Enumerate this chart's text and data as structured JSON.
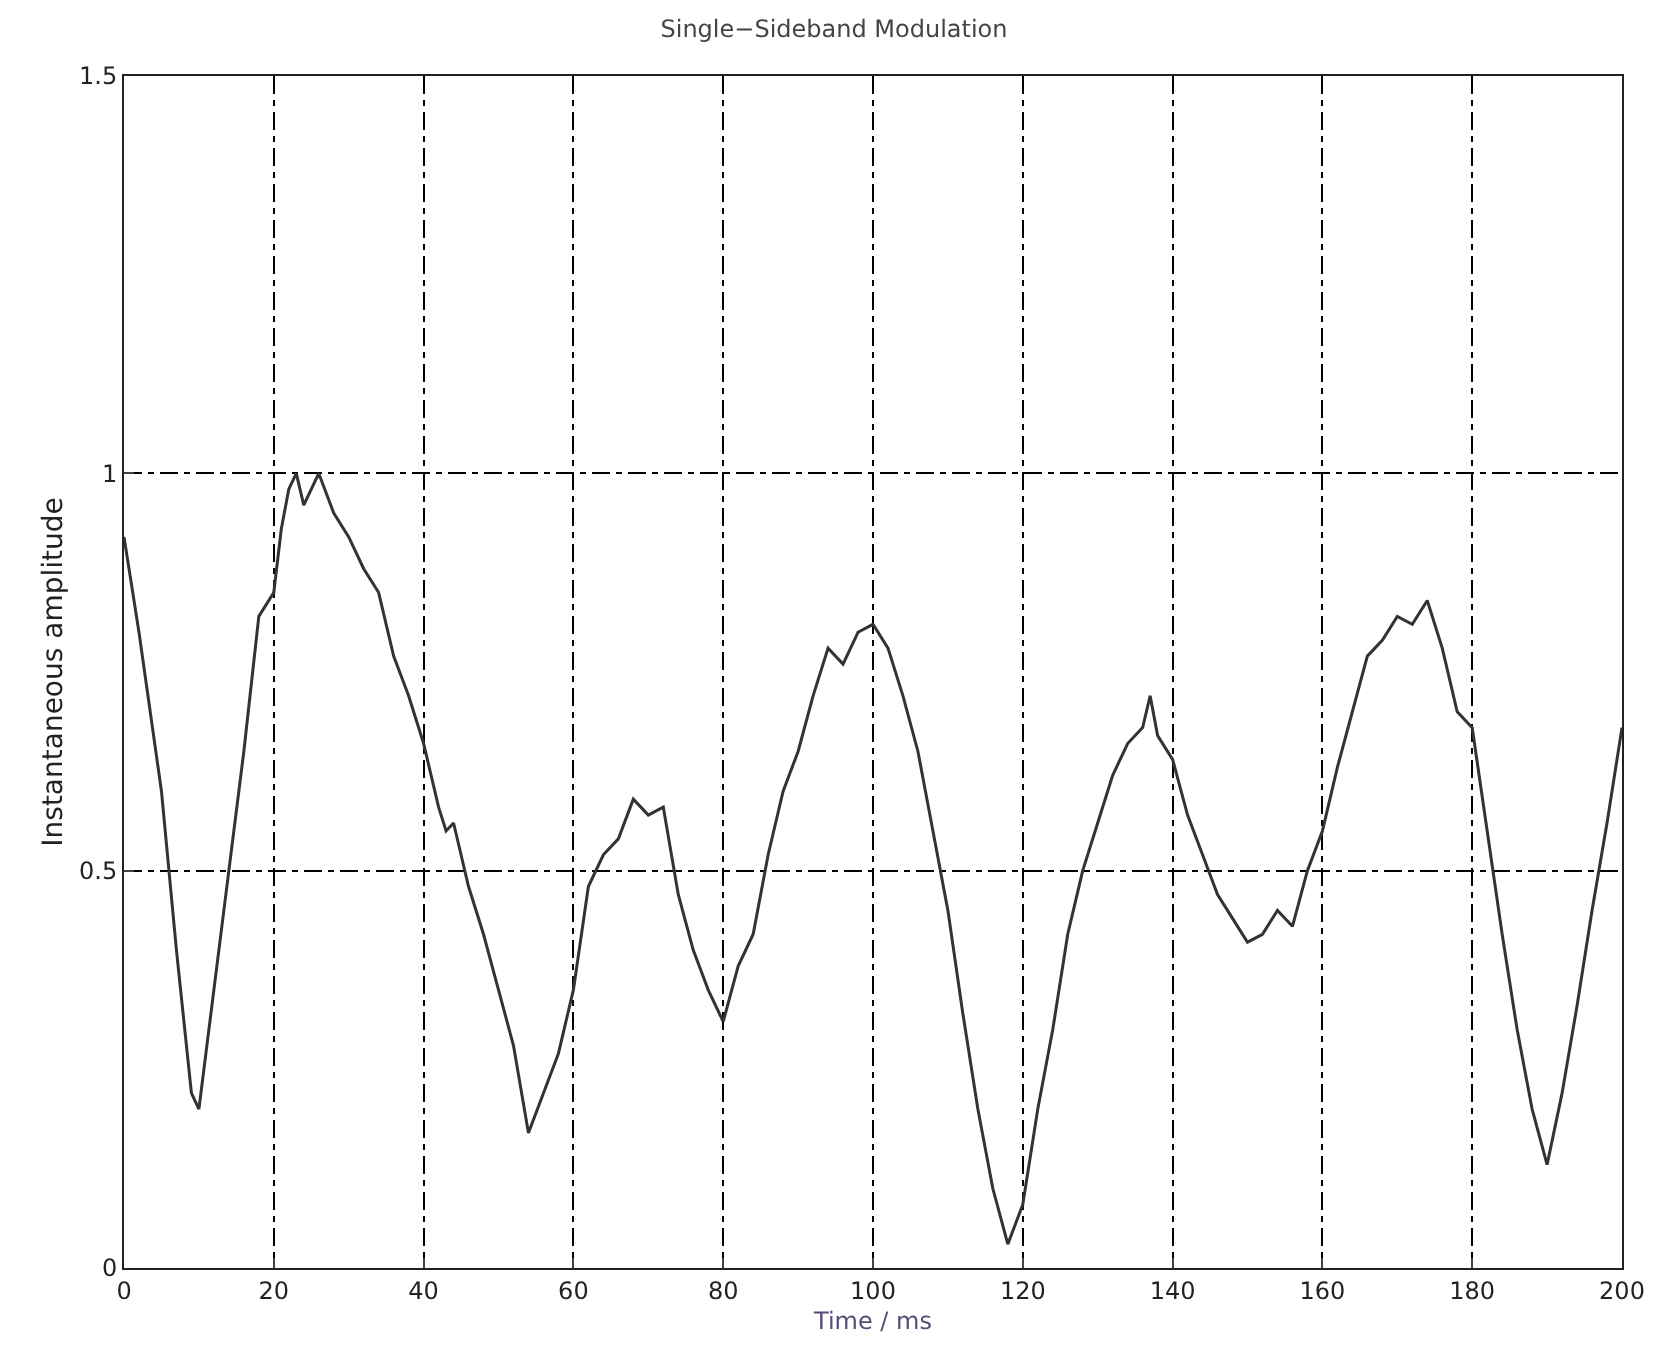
{
  "chart_data": {
    "type": "line",
    "title": "Single−Sideband Modulation",
    "xlabel": "Time / ms",
    "ylabel": "Instantaneous amplitude",
    "xlim": [
      0,
      200
    ],
    "xticks": [
      0,
      20,
      40,
      60,
      80,
      100,
      120,
      140,
      160,
      180,
      200
    ],
    "ylim": [
      0,
      1.5
    ],
    "yticks": [
      0,
      0.5,
      1,
      1.5
    ],
    "grid": true,
    "marker": "none",
    "line_style": "solid",
    "series": [
      {
        "color": "#333333",
        "x": [
          0,
          2,
          5,
          7,
          9,
          10,
          12,
          14,
          16,
          18,
          20,
          21,
          22,
          23,
          24,
          26,
          28,
          30,
          32,
          34,
          36,
          38,
          40,
          42,
          43,
          44,
          46,
          48,
          50,
          52,
          54,
          56,
          58,
          60,
          62,
          64,
          66,
          68,
          70,
          72,
          74,
          76,
          78,
          80,
          82,
          84,
          86,
          88,
          90,
          92,
          94,
          96,
          98,
          100,
          102,
          104,
          106,
          108,
          110,
          112,
          114,
          116,
          118,
          120,
          122,
          124,
          126,
          128,
          130,
          132,
          134,
          136,
          137,
          138,
          140,
          142,
          144,
          146,
          148,
          150,
          152,
          154,
          156,
          158,
          160,
          162,
          164,
          166,
          168,
          170,
          172,
          174,
          176,
          178,
          180,
          182,
          184,
          186,
          188,
          190,
          192,
          194,
          196,
          198,
          200
        ],
        "values": [
          0.92,
          0.8,
          0.6,
          0.4,
          0.22,
          0.2,
          0.35,
          0.5,
          0.65,
          0.82,
          0.85,
          0.93,
          0.98,
          1.0,
          0.96,
          1.0,
          0.95,
          0.92,
          0.88,
          0.85,
          0.77,
          0.72,
          0.66,
          0.58,
          0.55,
          0.56,
          0.48,
          0.42,
          0.35,
          0.28,
          0.17,
          0.22,
          0.27,
          0.35,
          0.48,
          0.52,
          0.54,
          0.59,
          0.57,
          0.58,
          0.47,
          0.4,
          0.35,
          0.31,
          0.38,
          0.42,
          0.52,
          0.6,
          0.65,
          0.72,
          0.78,
          0.76,
          0.8,
          0.81,
          0.78,
          0.72,
          0.65,
          0.55,
          0.45,
          0.32,
          0.2,
          0.1,
          0.03,
          0.08,
          0.2,
          0.3,
          0.42,
          0.5,
          0.56,
          0.62,
          0.66,
          0.68,
          0.72,
          0.67,
          0.64,
          0.57,
          0.52,
          0.47,
          0.44,
          0.41,
          0.42,
          0.45,
          0.43,
          0.5,
          0.55,
          0.63,
          0.7,
          0.77,
          0.79,
          0.82,
          0.81,
          0.84,
          0.78,
          0.7,
          0.68,
          0.55,
          0.42,
          0.3,
          0.2,
          0.13,
          0.22,
          0.33,
          0.45,
          0.56,
          0.68
        ]
      }
    ]
  }
}
